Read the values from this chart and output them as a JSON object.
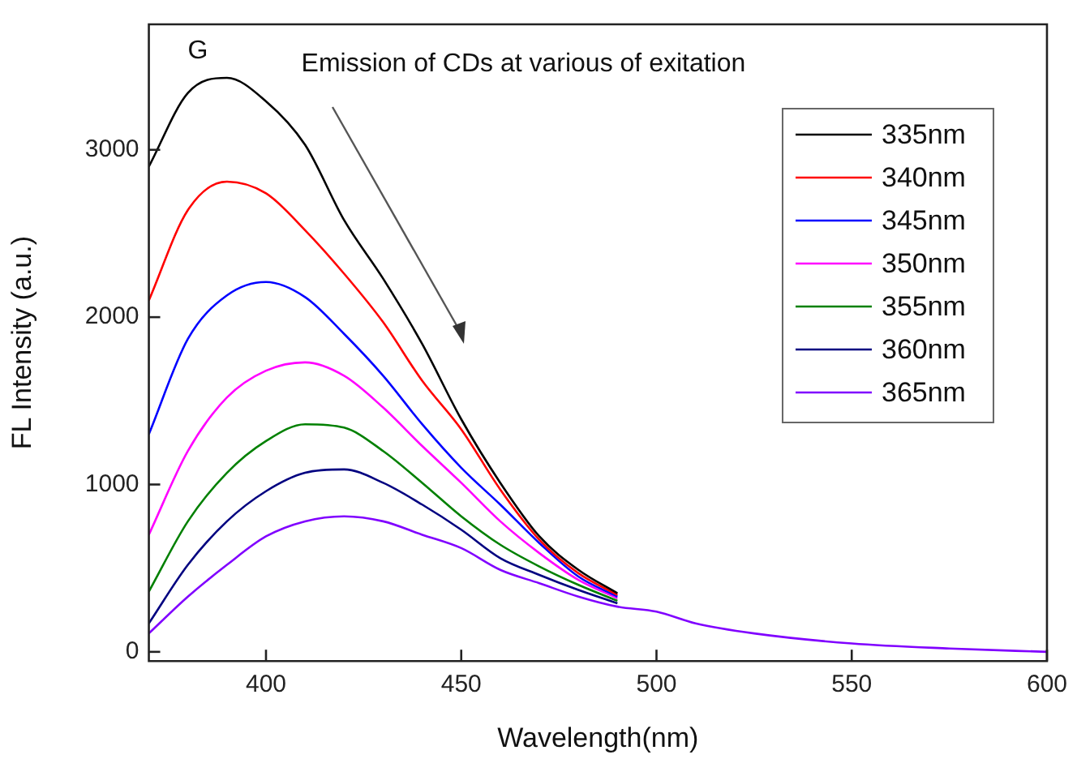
{
  "chart_data": {
    "type": "line",
    "title": "Emission of CDs at various of exitation",
    "xlabel": "Wavelength(nm)",
    "ylabel": "FL Intensity (a.u.)",
    "annotations": [
      "G"
    ],
    "x": [
      370,
      380,
      390,
      400,
      410,
      420,
      430,
      440,
      450,
      460,
      470,
      480,
      490,
      500,
      510,
      525,
      550,
      575,
      600
    ],
    "xlim": [
      370,
      600
    ],
    "xticks": [
      400,
      450,
      500,
      550,
      600
    ],
    "ylim": [
      -55,
      3750
    ],
    "yticks": [
      0,
      1000,
      2000,
      3000
    ],
    "grid": false,
    "legend": "top right",
    "marker": "none",
    "line_style": "solid",
    "series": [
      {
        "name": "335nm",
        "color": "#000000",
        "values": [
          2900,
          3340,
          3430,
          3290,
          3030,
          2580,
          2230,
          1840,
          1390,
          1010,
          690,
          490,
          350,
          null,
          null,
          null,
          null,
          null,
          null
        ]
      },
      {
        "name": "340nm",
        "color": "#ff0000",
        "values": [
          2100,
          2640,
          2810,
          2740,
          2520,
          2260,
          1970,
          1620,
          1330,
          970,
          670,
          470,
          340,
          null,
          null,
          null,
          null,
          null,
          null
        ]
      },
      {
        "name": "345nm",
        "color": "#0000ff",
        "values": [
          1300,
          1870,
          2130,
          2210,
          2120,
          1900,
          1650,
          1360,
          1100,
          880,
          650,
          450,
          330,
          null,
          null,
          null,
          null,
          null,
          null
        ]
      },
      {
        "name": "350nm",
        "color": "#ff00ff",
        "values": [
          700,
          1200,
          1520,
          1680,
          1730,
          1650,
          1460,
          1230,
          1010,
          780,
          590,
          430,
          320,
          null,
          null,
          null,
          null,
          null,
          null
        ]
      },
      {
        "name": "355nm",
        "color": "#008000",
        "values": [
          360,
          780,
          1070,
          1260,
          1360,
          1340,
          1200,
          1010,
          810,
          640,
          510,
          400,
          305,
          null,
          null,
          null,
          null,
          null,
          null
        ]
      },
      {
        "name": "360nm",
        "color": "#000080",
        "values": [
          170,
          520,
          780,
          960,
          1070,
          1090,
          1010,
          880,
          730,
          560,
          460,
          370,
          290,
          null,
          null,
          null,
          null,
          null,
          null
        ]
      },
      {
        "name": "365nm",
        "color": "#8000ff",
        "values": [
          110,
          330,
          520,
          690,
          780,
          810,
          780,
          700,
          620,
          490,
          410,
          330,
          270,
          240,
          170,
          110,
          50,
          20,
          0
        ]
      }
    ]
  }
}
